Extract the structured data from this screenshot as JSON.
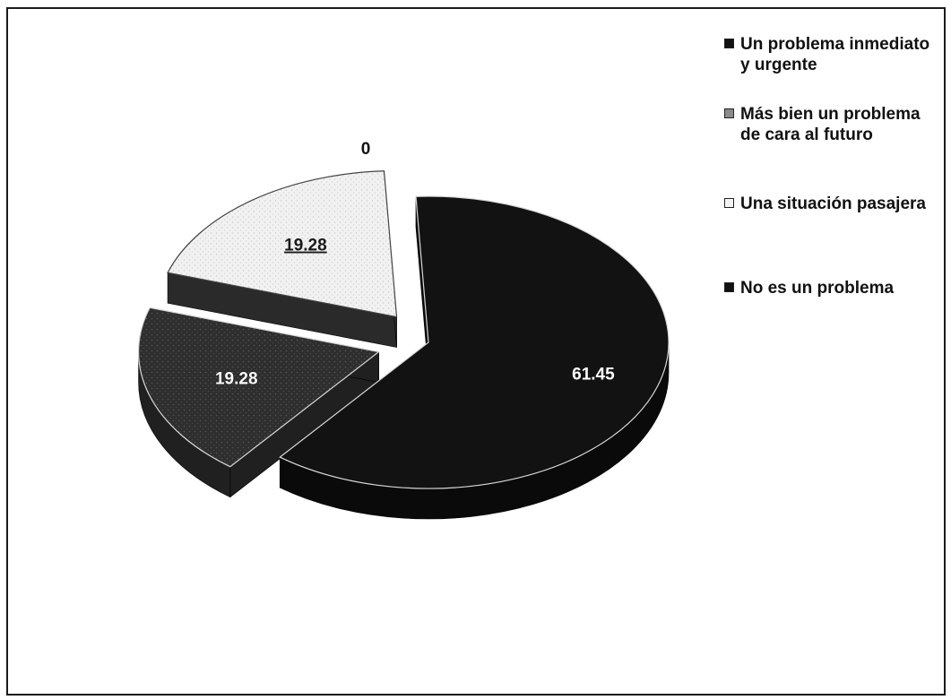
{
  "chart_data": {
    "type": "pie",
    "style": "3d-exploded",
    "title": "",
    "legend_position": "right",
    "slices": [
      {
        "label": "Un problema inmediato y urgente",
        "value": 61.45,
        "value_label": "61.45",
        "color": "#121212"
      },
      {
        "label": "Más bien un problema de cara al futuro",
        "value": 19.28,
        "value_label": "19.28",
        "color": "#2e2e2e"
      },
      {
        "label": "Una situación pasajera",
        "value": 19.28,
        "value_label": "19.28",
        "color": "#ececec"
      },
      {
        "label": "No es un problema",
        "value": 0,
        "value_label": "0",
        "color": "#1c1c1c"
      }
    ]
  }
}
